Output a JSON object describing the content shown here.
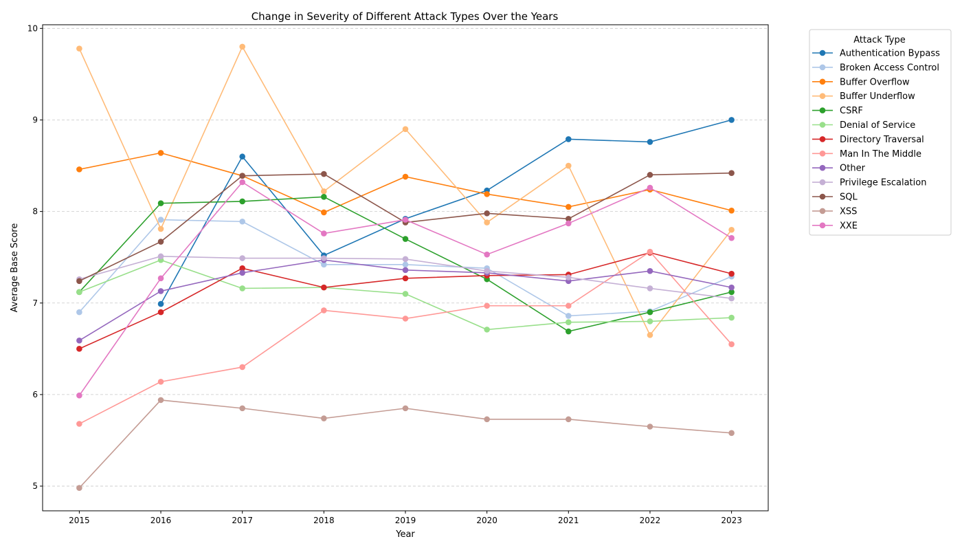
{
  "chart_data": {
    "type": "line",
    "title": "Change in Severity of Different Attack Types Over the Years",
    "xlabel": "Year",
    "ylabel": "Average Base Score",
    "x": [
      2015,
      2016,
      2017,
      2018,
      2019,
      2020,
      2021,
      2022,
      2023
    ],
    "xlim": [
      2014.55,
      2023.45
    ],
    "ylim": [
      4.73,
      10.04
    ],
    "yticks": [
      5,
      6,
      7,
      8,
      9,
      10
    ],
    "grid": "horizontal dashed",
    "legend": {
      "title": "Attack Type",
      "placement": "outside right, top"
    },
    "series": [
      {
        "name": "Authentication Bypass",
        "color": "#1f77b4",
        "values": [
          null,
          6.99,
          8.6,
          7.52,
          7.92,
          8.23,
          8.79,
          8.76,
          9.0
        ]
      },
      {
        "name": "Broken Access Control",
        "color": "#aec7e8",
        "values": [
          6.9,
          7.91,
          7.89,
          7.42,
          7.42,
          7.38,
          6.86,
          6.91,
          7.29
        ]
      },
      {
        "name": "Buffer Overflow",
        "color": "#ff7f0e",
        "values": [
          8.46,
          8.64,
          8.39,
          7.99,
          8.38,
          8.19,
          8.05,
          8.24,
          8.01
        ]
      },
      {
        "name": "Buffer Underflow",
        "color": "#ffbb78",
        "values": [
          9.78,
          7.81,
          9.8,
          8.22,
          8.9,
          7.88,
          8.5,
          6.65,
          7.8
        ]
      },
      {
        "name": "CSRF",
        "color": "#2ca02c",
        "values": [
          7.12,
          8.09,
          8.11,
          8.16,
          7.7,
          7.26,
          6.69,
          6.9,
          7.12
        ]
      },
      {
        "name": "Denial of Service",
        "color": "#98df8a",
        "values": [
          7.12,
          7.47,
          7.16,
          7.17,
          7.1,
          6.71,
          6.79,
          6.8,
          6.84
        ]
      },
      {
        "name": "Directory Traversal",
        "color": "#d62728",
        "values": [
          6.5,
          6.9,
          7.38,
          7.17,
          7.27,
          7.3,
          7.31,
          7.55,
          7.32
        ]
      },
      {
        "name": "Man In The Middle",
        "color": "#ff9896",
        "values": [
          5.68,
          6.14,
          6.3,
          6.92,
          6.83,
          6.97,
          6.97,
          7.56,
          6.55
        ]
      },
      {
        "name": "Other",
        "color": "#9467bd",
        "values": [
          6.59,
          7.13,
          7.33,
          7.47,
          7.36,
          7.33,
          7.24,
          7.35,
          7.17
        ]
      },
      {
        "name": "Privilege Escalation",
        "color": "#c5b0d5",
        "values": [
          7.26,
          7.51,
          7.49,
          7.49,
          7.48,
          7.35,
          7.28,
          7.16,
          7.05
        ]
      },
      {
        "name": "SQL",
        "color": "#8c564b",
        "values": [
          7.24,
          7.67,
          8.39,
          8.41,
          7.88,
          7.98,
          7.92,
          8.4,
          8.42
        ]
      },
      {
        "name": "XSS",
        "color": "#c49c94",
        "values": [
          4.98,
          5.94,
          5.85,
          5.74,
          5.85,
          5.73,
          5.73,
          5.65,
          5.58
        ]
      },
      {
        "name": "XXE",
        "color": "#e377c2",
        "values": [
          5.99,
          7.27,
          8.32,
          7.76,
          7.91,
          7.53,
          7.87,
          8.26,
          7.71
        ]
      }
    ]
  }
}
